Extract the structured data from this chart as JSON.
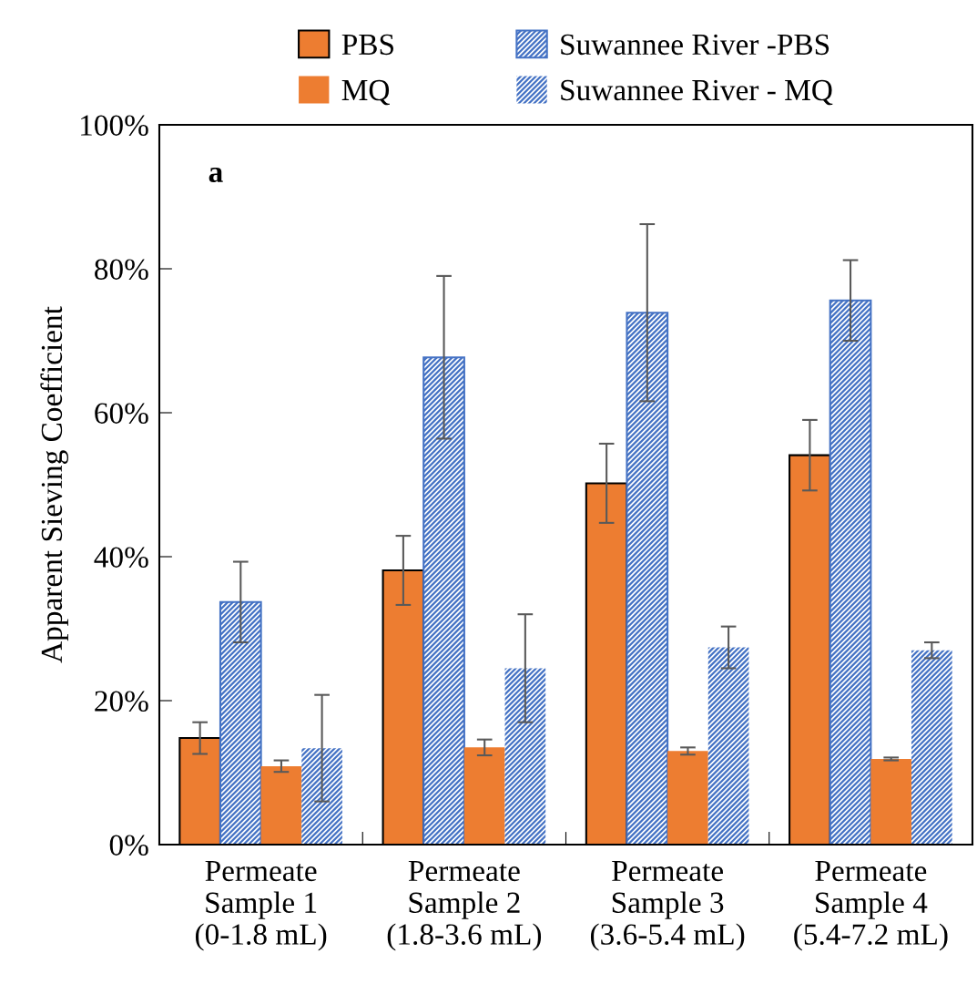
{
  "chart_data": {
    "type": "bar",
    "categories": [
      "Permeate\nSample 1\n(0-1.8 mL)",
      "Permeate\nSample 2\n(1.8-3.6 mL)",
      "Permeate\nSample 3\n(3.6-5.4 mL)",
      "Permeate\nSample 4\n(5.4-7.2 mL)"
    ],
    "ylabel": "Apparent Sieving Coefficient",
    "annotations": [
      "a"
    ],
    "series": [
      {
        "name": "PBS",
        "color": "#ed7d31",
        "values": [
          14.8,
          38.1,
          50.2,
          54.1
        ],
        "errors": [
          2.2,
          4.8,
          5.5,
          4.9
        ]
      },
      {
        "name": "Suwannee River -PBS",
        "color": "#4472c4",
        "values": [
          33.7,
          67.7,
          73.9,
          75.6
        ],
        "errors": [
          5.6,
          11.3,
          12.3,
          5.6
        ]
      },
      {
        "name": "MQ",
        "color": "#ed7d31",
        "values": [
          10.9,
          13.5,
          13.0,
          11.9
        ],
        "errors": [
          0.8,
          1.1,
          0.5,
          0.2
        ]
      },
      {
        "name": "Suwannee River - MQ",
        "color": "#4472c4",
        "values": [
          13.4,
          24.5,
          27.4,
          27.0
        ],
        "errors": [
          7.4,
          7.5,
          2.9,
          1.1
        ]
      }
    ],
    "ylim": [
      0,
      100
    ],
    "yticks": [
      {
        "value": 0,
        "label": "0%"
      },
      {
        "value": 20,
        "label": "20%"
      },
      {
        "value": 40,
        "label": "40%"
      },
      {
        "value": 60,
        "label": "60%"
      },
      {
        "value": 80,
        "label": "80%"
      },
      {
        "value": 100,
        "label": "100%"
      }
    ],
    "grid": false,
    "legend": "top"
  }
}
